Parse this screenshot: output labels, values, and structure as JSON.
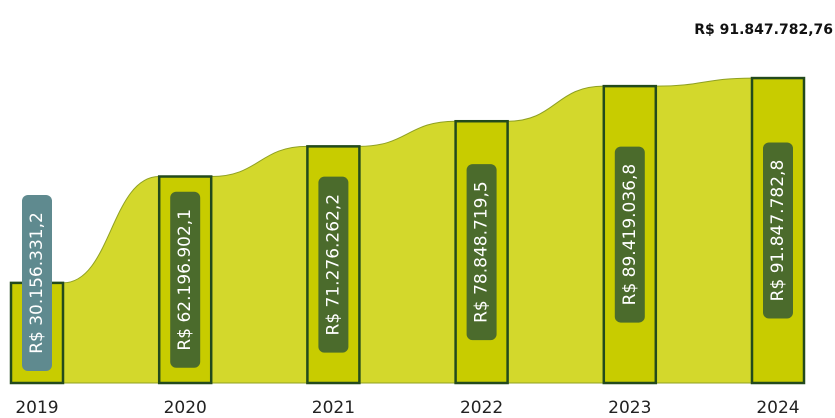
{
  "chart_data": {
    "type": "bar",
    "annotation": "R$ 91.847.782,76",
    "categories": [
      "2019",
      "2020",
      "2021",
      "2022",
      "2023",
      "2024"
    ],
    "values": [
      30156331.2,
      62196902.1,
      71276262.2,
      78848719.5,
      89419036.8,
      91847782.8
    ],
    "value_labels": [
      "R$ 30.156.331,2",
      "R$ 62.196.902,1",
      "R$ 71.276.262,2",
      "R$ 78.848.719,5",
      "R$ 89.419.036,8",
      "R$ 91.847.782,8"
    ],
    "color": "#c8cc00",
    "area_color": "#d3d82c",
    "border_color": "#234a1c",
    "label_color": "#4b6b2c",
    "label_overflow_color": "#5f8a8f",
    "ylim": [
      0,
      100000000
    ]
  }
}
